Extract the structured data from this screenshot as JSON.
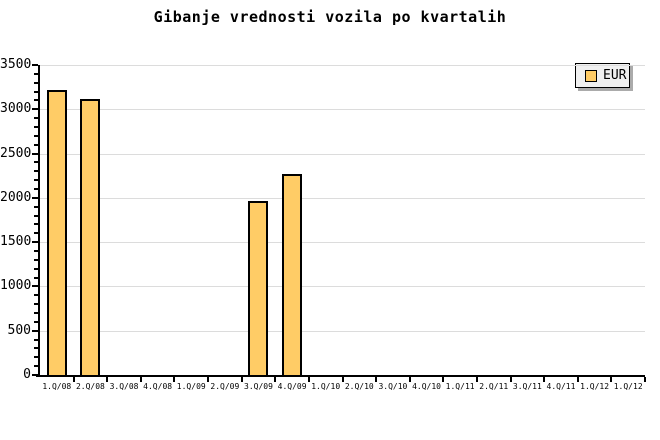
{
  "title": "Gibanje vrednosti vozila po kvartalih",
  "legend": {
    "label": "EUR"
  },
  "colors": {
    "bar_fill": "#FFCC66",
    "bar_border": "#000000",
    "grid": "#DCDCDC",
    "axis": "#000000",
    "background": "#FFFFFF",
    "legend_bg": "#F0F0F0",
    "legend_shadow": "#ABABAB"
  },
  "chart_data": {
    "type": "bar",
    "title": "Gibanje vrednosti vozila po kvartalih",
    "xlabel": "",
    "ylabel": "",
    "categories": [
      "1.Q/08",
      "2.Q/08",
      "3.Q/08",
      "4.Q/08",
      "1.Q/09",
      "2.Q/09",
      "3.Q/09",
      "4.Q/09",
      "1.Q/10",
      "2.Q/10",
      "3.Q/10",
      "4.Q/10",
      "1.Q/11",
      "2.Q/11",
      "3.Q/11",
      "4.Q/11",
      "1.Q/12",
      "1.Q/12"
    ],
    "series": [
      {
        "name": "EUR",
        "values": [
          3220,
          3120,
          null,
          null,
          null,
          null,
          1970,
          2270,
          null,
          null,
          null,
          null,
          null,
          null,
          null,
          null,
          null,
          null
        ]
      }
    ],
    "ylim": [
      0,
      3500
    ],
    "yticks": [
      0,
      500,
      1000,
      1500,
      2000,
      2500,
      3000,
      3500
    ],
    "ytick_step": 500,
    "ytick_minor_step": 100,
    "grid": "horizontal",
    "legend_position": "top-right"
  }
}
